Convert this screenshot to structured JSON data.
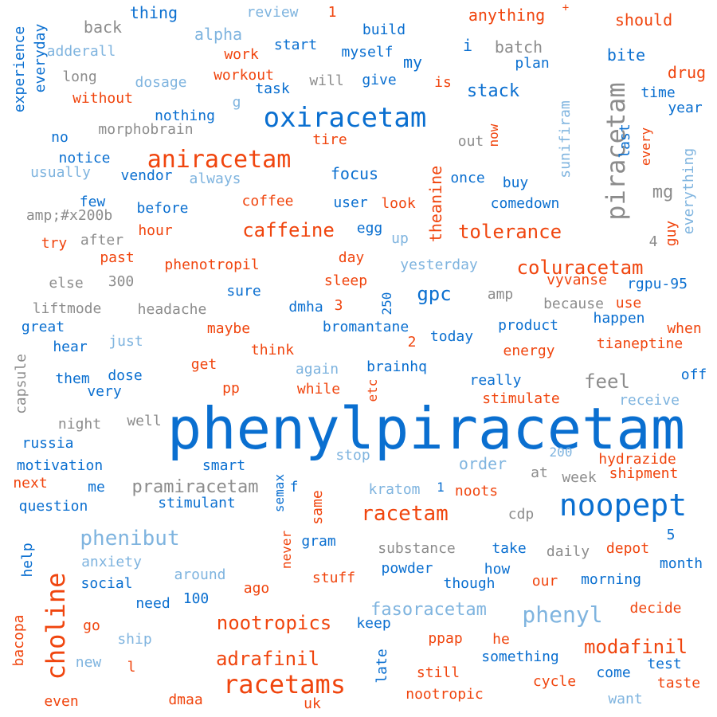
{
  "words": [
    {
      "text": "phenylpiracetam",
      "color": "blue"
    },
    {
      "text": "noopept",
      "color": "blue"
    },
    {
      "text": "piracetam",
      "color": "gray"
    },
    {
      "text": "oxiracetam",
      "color": "blue"
    },
    {
      "text": "aniracetam",
      "color": "orange"
    },
    {
      "text": "choline",
      "color": "orange"
    },
    {
      "text": "racetams",
      "color": "orange"
    },
    {
      "text": "racetam",
      "color": "orange"
    },
    {
      "text": "phenibut",
      "color": "light"
    },
    {
      "text": "phenyl",
      "color": "light"
    },
    {
      "text": "caffeine",
      "color": "orange"
    },
    {
      "text": "tolerance",
      "color": "orange"
    },
    {
      "text": "coluracetam",
      "color": "orange"
    },
    {
      "text": "nootropics",
      "color": "orange"
    },
    {
      "text": "modafinil",
      "color": "orange"
    },
    {
      "text": "adrafinil",
      "color": "orange"
    },
    {
      "text": "fasoracetam",
      "color": "light"
    },
    {
      "text": "pramiracetam",
      "color": "gray"
    },
    {
      "text": "feel",
      "color": "gray"
    },
    {
      "text": "gpc",
      "color": "blue"
    },
    {
      "text": "mg",
      "color": "gray"
    },
    {
      "text": "stack",
      "color": "blue"
    },
    {
      "text": "focus",
      "color": "blue"
    },
    {
      "text": "theanine",
      "color": "orange"
    },
    {
      "text": "order",
      "color": "light"
    },
    {
      "text": "thing",
      "color": "blue"
    },
    {
      "text": "review",
      "color": "light"
    },
    {
      "text": "1",
      "color": "orange"
    },
    {
      "text": "anything",
      "color": "orange"
    },
    {
      "text": "+",
      "color": "orange"
    },
    {
      "text": "should",
      "color": "orange"
    },
    {
      "text": "back",
      "color": "gray"
    },
    {
      "text": "alpha",
      "color": "light"
    },
    {
      "text": "build",
      "color": "blue"
    },
    {
      "text": "start",
      "color": "blue"
    },
    {
      "text": "i",
      "color": "blue"
    },
    {
      "text": "batch",
      "color": "gray"
    },
    {
      "text": "adderall",
      "color": "light"
    },
    {
      "text": "work",
      "color": "orange"
    },
    {
      "text": "myself",
      "color": "blue"
    },
    {
      "text": "my",
      "color": "blue"
    },
    {
      "text": "plan",
      "color": "blue"
    },
    {
      "text": "bite",
      "color": "blue"
    },
    {
      "text": "experience",
      "color": "blue"
    },
    {
      "text": "everyday",
      "color": "blue"
    },
    {
      "text": "long",
      "color": "gray"
    },
    {
      "text": "dosage",
      "color": "light"
    },
    {
      "text": "workout",
      "color": "orange"
    },
    {
      "text": "will",
      "color": "gray"
    },
    {
      "text": "give",
      "color": "blue"
    },
    {
      "text": "is",
      "color": "orange"
    },
    {
      "text": "drug",
      "color": "orange"
    },
    {
      "text": "task",
      "color": "blue"
    },
    {
      "text": "without",
      "color": "orange"
    },
    {
      "text": "g",
      "color": "light"
    },
    {
      "text": "time",
      "color": "blue"
    },
    {
      "text": "year",
      "color": "blue"
    },
    {
      "text": "nothing",
      "color": "blue"
    },
    {
      "text": "morphobrain",
      "color": "gray"
    },
    {
      "text": "no",
      "color": "blue"
    },
    {
      "text": "tire",
      "color": "orange"
    },
    {
      "text": "out",
      "color": "gray"
    },
    {
      "text": "now",
      "color": "orange"
    },
    {
      "text": "last",
      "color": "blue"
    },
    {
      "text": "every",
      "color": "orange"
    },
    {
      "text": "notice",
      "color": "blue"
    },
    {
      "text": "sunifiram",
      "color": "light"
    },
    {
      "text": "everything",
      "color": "light"
    },
    {
      "text": "usually",
      "color": "light"
    },
    {
      "text": "vendor",
      "color": "blue"
    },
    {
      "text": "always",
      "color": "light"
    },
    {
      "text": "once",
      "color": "blue"
    },
    {
      "text": "buy",
      "color": "blue"
    },
    {
      "text": "few",
      "color": "blue"
    },
    {
      "text": "coffee",
      "color": "orange"
    },
    {
      "text": "user",
      "color": "blue"
    },
    {
      "text": "look",
      "color": "orange"
    },
    {
      "text": "comedown",
      "color": "blue"
    },
    {
      "text": "amp;#x200b",
      "color": "gray"
    },
    {
      "text": "before",
      "color": "blue"
    },
    {
      "text": "egg",
      "color": "blue"
    },
    {
      "text": "guy",
      "color": "orange"
    },
    {
      "text": "try",
      "color": "orange"
    },
    {
      "text": "after",
      "color": "gray"
    },
    {
      "text": "hour",
      "color": "orange"
    },
    {
      "text": "up",
      "color": "light"
    },
    {
      "text": "4",
      "color": "gray"
    },
    {
      "text": "past",
      "color": "orange"
    },
    {
      "text": "phenotropil",
      "color": "orange"
    },
    {
      "text": "day",
      "color": "orange"
    },
    {
      "text": "yesterday",
      "color": "light"
    },
    {
      "text": "else",
      "color": "gray"
    },
    {
      "text": "300",
      "color": "gray"
    },
    {
      "text": "sleep",
      "color": "orange"
    },
    {
      "text": "vyvanse",
      "color": "orange"
    },
    {
      "text": "rgpu-95",
      "color": "blue"
    },
    {
      "text": "sure",
      "color": "blue"
    },
    {
      "text": "250",
      "color": "blue"
    },
    {
      "text": "amp",
      "color": "gray"
    },
    {
      "text": "liftmode",
      "color": "gray"
    },
    {
      "text": "headache",
      "color": "gray"
    },
    {
      "text": "dmha",
      "color": "blue"
    },
    {
      "text": "3",
      "color": "orange"
    },
    {
      "text": "because",
      "color": "gray"
    },
    {
      "text": "use",
      "color": "orange"
    },
    {
      "text": "great",
      "color": "blue"
    },
    {
      "text": "maybe",
      "color": "orange"
    },
    {
      "text": "bromantane",
      "color": "blue"
    },
    {
      "text": "product",
      "color": "blue"
    },
    {
      "text": "happen",
      "color": "blue"
    },
    {
      "text": "when",
      "color": "orange"
    },
    {
      "text": "hear",
      "color": "blue"
    },
    {
      "text": "just",
      "color": "light"
    },
    {
      "text": "think",
      "color": "orange"
    },
    {
      "text": "2",
      "color": "orange"
    },
    {
      "text": "today",
      "color": "blue"
    },
    {
      "text": "energy",
      "color": "orange"
    },
    {
      "text": "tianeptine",
      "color": "orange"
    },
    {
      "text": "capsule",
      "color": "gray"
    },
    {
      "text": "get",
      "color": "orange"
    },
    {
      "text": "again",
      "color": "light"
    },
    {
      "text": "brainhq",
      "color": "blue"
    },
    {
      "text": "etc",
      "color": "orange"
    },
    {
      "text": "off",
      "color": "blue"
    },
    {
      "text": "them",
      "color": "blue"
    },
    {
      "text": "dose",
      "color": "blue"
    },
    {
      "text": "pp",
      "color": "orange"
    },
    {
      "text": "while",
      "color": "orange"
    },
    {
      "text": "really",
      "color": "blue"
    },
    {
      "text": "very",
      "color": "blue"
    },
    {
      "text": "stimulate",
      "color": "orange"
    },
    {
      "text": "receive",
      "color": "light"
    },
    {
      "text": "night",
      "color": "gray"
    },
    {
      "text": "well",
      "color": "gray"
    },
    {
      "text": "russia",
      "color": "blue"
    },
    {
      "text": "motivation",
      "color": "blue"
    },
    {
      "text": "smart",
      "color": "blue"
    },
    {
      "text": "stop",
      "color": "light"
    },
    {
      "text": "200",
      "color": "light"
    },
    {
      "text": "hydrazide",
      "color": "orange"
    },
    {
      "text": "next",
      "color": "orange"
    },
    {
      "text": "semax",
      "color": "blue"
    },
    {
      "text": "at",
      "color": "gray"
    },
    {
      "text": "week",
      "color": "gray"
    },
    {
      "text": "shipment",
      "color": "orange"
    },
    {
      "text": "me",
      "color": "blue"
    },
    {
      "text": "f",
      "color": "blue"
    },
    {
      "text": "kratom",
      "color": "light"
    },
    {
      "text": "noots",
      "color": "orange"
    },
    {
      "text": "question",
      "color": "blue"
    },
    {
      "text": "stimulant",
      "color": "blue"
    },
    {
      "text": "same",
      "color": "orange"
    },
    {
      "text": "cdp",
      "color": "gray"
    },
    {
      "text": "5",
      "color": "blue"
    },
    {
      "text": "never",
      "color": "orange"
    },
    {
      "text": "gram",
      "color": "blue"
    },
    {
      "text": "substance",
      "color": "gray"
    },
    {
      "text": "take",
      "color": "blue"
    },
    {
      "text": "daily",
      "color": "gray"
    },
    {
      "text": "depot",
      "color": "orange"
    },
    {
      "text": "help",
      "color": "blue"
    },
    {
      "text": "anxiety",
      "color": "light"
    },
    {
      "text": "month",
      "color": "blue"
    },
    {
      "text": "around",
      "color": "light"
    },
    {
      "text": "stuff",
      "color": "orange"
    },
    {
      "text": "powder",
      "color": "blue"
    },
    {
      "text": "how",
      "color": "blue"
    },
    {
      "text": "social",
      "color": "blue"
    },
    {
      "text": "ago",
      "color": "orange"
    },
    {
      "text": "though",
      "color": "blue"
    },
    {
      "text": "our",
      "color": "orange"
    },
    {
      "text": "morning",
      "color": "blue"
    },
    {
      "text": "need",
      "color": "blue"
    },
    {
      "text": "100",
      "color": "blue"
    },
    {
      "text": "decide",
      "color": "orange"
    },
    {
      "text": "bacopa",
      "color": "orange"
    },
    {
      "text": "keep",
      "color": "blue"
    },
    {
      "text": "go",
      "color": "orange"
    },
    {
      "text": "ship",
      "color": "light"
    },
    {
      "text": "ppap",
      "color": "orange"
    },
    {
      "text": "he",
      "color": "orange"
    },
    {
      "text": "new",
      "color": "light"
    },
    {
      "text": "l",
      "color": "orange"
    },
    {
      "text": "late",
      "color": "blue"
    },
    {
      "text": "something",
      "color": "blue"
    },
    {
      "text": "test",
      "color": "blue"
    },
    {
      "text": "still",
      "color": "orange"
    },
    {
      "text": "cycle",
      "color": "orange"
    },
    {
      "text": "come",
      "color": "blue"
    },
    {
      "text": "taste",
      "color": "orange"
    },
    {
      "text": "even",
      "color": "orange"
    },
    {
      "text": "dmaa",
      "color": "orange"
    },
    {
      "text": "uk",
      "color": "orange"
    },
    {
      "text": "nootropic",
      "color": "orange"
    },
    {
      "text": "want",
      "color": "light"
    },
    {
      "text": "1",
      "color": "blue"
    }
  ]
}
